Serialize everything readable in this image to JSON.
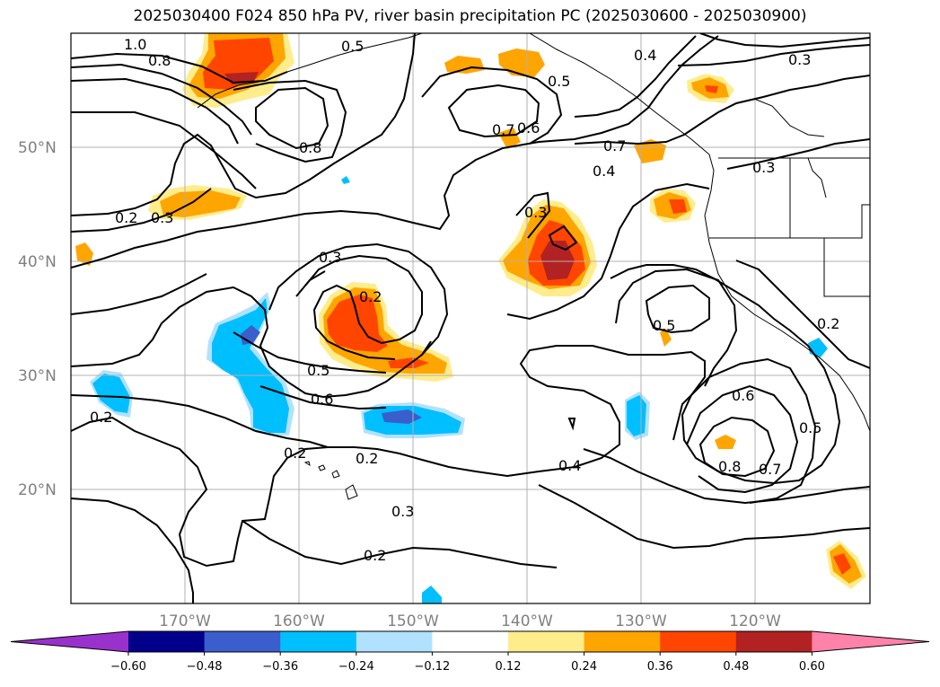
{
  "title": "2025030400 F024 850 hPa PV, river basin precipitation PC (2025030600 - 2025030900)",
  "map": {
    "lon_range": [
      -180,
      -110
    ],
    "lat_range": [
      10,
      60
    ],
    "lat_ticks": [
      "50°N",
      "40°N",
      "30°N",
      "20°N"
    ],
    "lon_ticks": [
      "170°W",
      "160°W",
      "150°W",
      "140°W",
      "130°W",
      "120°W"
    ],
    "grid": true,
    "contour_labels": [
      "1.0",
      "0.8",
      "0.5",
      "0.4",
      "0.3",
      "0.5",
      "0.8",
      "0.7",
      "0.6",
      "0.7",
      "0.4",
      "0.3",
      "0.2",
      "0.3",
      "0.3",
      "0.3",
      "0.2",
      "0.5",
      "0.2",
      "0.5",
      "0.6",
      "0.2",
      "0.2",
      "0.2",
      "0.4",
      "0.6",
      "0.5",
      "0.8",
      "0.7",
      "0.3",
      "0.2"
    ]
  },
  "colorbar": {
    "ticks": [
      "−0.60",
      "−0.48",
      "−0.36",
      "−0.24",
      "−0.12",
      "0.12",
      "0.24",
      "0.36",
      "0.48",
      "0.60"
    ],
    "colors": [
      "#9932cc",
      "#00008b",
      "#3a5fcd",
      "#00bfff",
      "#b0e2ff",
      "#ffffff",
      "#ffec8b",
      "#ffa500",
      "#ff4500",
      "#b22222",
      "#ff82ab"
    ]
  }
}
